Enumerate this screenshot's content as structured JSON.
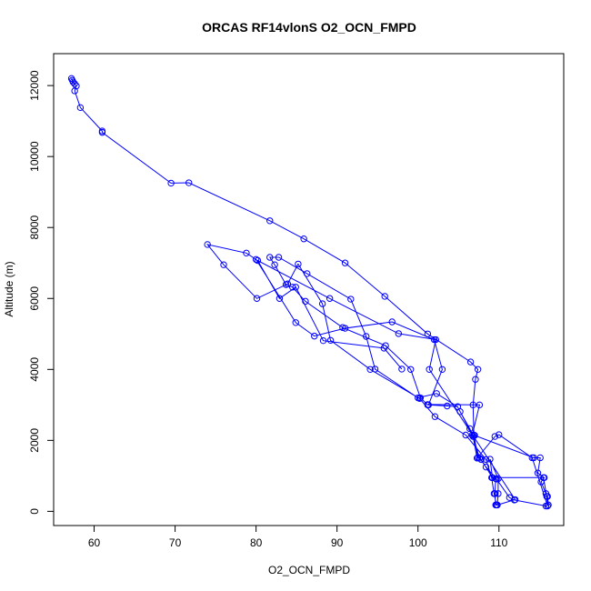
{
  "chart_data": {
    "type": "line",
    "title": "ORCAS RF14vlonS O2_OCN_FMPD",
    "xlabel": "O2_OCN_FMPD",
    "ylabel": "Altitude (m)",
    "xlim": [
      55,
      118
    ],
    "ylim": [
      -400,
      12900
    ],
    "x_ticks": [
      60,
      70,
      80,
      90,
      100,
      110
    ],
    "y_ticks": [
      0,
      2000,
      4000,
      6000,
      8000,
      10000,
      12000
    ],
    "grid": false,
    "series_color": "#0000ff",
    "series": [
      {
        "points": [
          [
            57.3,
            12150
          ],
          [
            57.2,
            12200
          ],
          [
            57.4,
            12100
          ],
          [
            57.6,
            12050
          ],
          [
            57.8,
            11990
          ],
          [
            57.6,
            11850
          ],
          [
            58.3,
            11380
          ],
          [
            61.0,
            10720
          ],
          [
            61.0,
            10680
          ],
          [
            69.5,
            9250
          ],
          [
            71.7,
            9260
          ],
          [
            81.7,
            8190
          ],
          [
            85.9,
            7680
          ],
          [
            91.0,
            7000
          ],
          [
            95.9,
            6060
          ],
          [
            101.2,
            5000
          ],
          [
            106.5,
            4210
          ],
          [
            107.4,
            4000
          ],
          [
            107.1,
            3720
          ],
          [
            106.8,
            3000
          ],
          [
            106.9,
            2150
          ],
          [
            107.4,
            1520
          ],
          [
            107.8,
            1460
          ],
          [
            109.2,
            950
          ],
          [
            109.6,
            920
          ],
          [
            109.5,
            500
          ],
          [
            109.6,
            180
          ],
          [
            109.7,
            180
          ],
          [
            109.4,
            500
          ],
          [
            109.1,
            950
          ],
          [
            108.4,
            1460
          ],
          [
            105.9,
            2150
          ],
          [
            102.1,
            2670
          ],
          [
            100.2,
            3180
          ],
          [
            94.1,
            4000
          ],
          [
            89.2,
            4820
          ],
          [
            88.2,
            5850
          ],
          [
            85.2,
            6970
          ],
          [
            83.9,
            6410
          ],
          [
            80.1,
            6000
          ],
          [
            76.0,
            6950
          ],
          [
            74.0,
            7520
          ],
          [
            78.8,
            7280
          ],
          [
            80.0,
            7100
          ],
          [
            84.9,
            5320
          ],
          [
            87.2,
            4940
          ],
          [
            91.0,
            5160
          ],
          [
            96.8,
            5340
          ],
          [
            102.0,
            4840
          ],
          [
            103.0,
            4000
          ],
          [
            101.3,
            3000
          ],
          [
            101.2,
            3010
          ],
          [
            107.6,
            3000
          ],
          [
            106.7,
            2150
          ],
          [
            107.0,
            2140
          ],
          [
            114.3,
            1510
          ],
          [
            115.1,
            1510
          ],
          [
            114.8,
            1080
          ],
          [
            115.6,
            950
          ],
          [
            115.2,
            830
          ],
          [
            115.8,
            500
          ],
          [
            116.0,
            420
          ],
          [
            116.1,
            180
          ],
          [
            115.8,
            150
          ],
          [
            111.9,
            320
          ],
          [
            111.3,
            390
          ],
          [
            109.7,
            910
          ],
          [
            108.4,
            1250
          ],
          [
            107.6,
            1500
          ],
          [
            106.8,
            2120
          ],
          [
            106.4,
            2330
          ],
          [
            105.2,
            2810
          ],
          [
            104.9,
            2950
          ],
          [
            102.3,
            3320
          ],
          [
            100.0,
            3200
          ],
          [
            94.7,
            4010
          ],
          [
            93.6,
            4930
          ],
          [
            91.7,
            5980
          ],
          [
            86.3,
            6700
          ],
          [
            82.8,
            7160
          ],
          [
            81.7,
            7160
          ],
          [
            82.3,
            6950
          ],
          [
            83.7,
            6390
          ],
          [
            84.5,
            6320
          ],
          [
            86.1,
            5920
          ],
          [
            90.7,
            5180
          ],
          [
            96.0,
            4670
          ],
          [
            99.1,
            4000
          ],
          [
            100.3,
            3200
          ],
          [
            101.2,
            3000
          ],
          [
            103.6,
            2970
          ],
          [
            104.9,
            2950
          ],
          [
            106.8,
            2110
          ],
          [
            107.3,
            1500
          ],
          [
            109.5,
            2110
          ],
          [
            110.0,
            2160
          ],
          [
            114.1,
            1510
          ],
          [
            116.0,
            150
          ],
          [
            115.9,
            420
          ],
          [
            115.5,
            950
          ],
          [
            109.2,
            950
          ],
          [
            108.9,
            1470
          ],
          [
            109.9,
            920
          ],
          [
            109.9,
            500
          ],
          [
            109.8,
            180
          ],
          [
            112.0,
            330
          ],
          [
            101.4,
            4000
          ],
          [
            102.2,
            4840
          ],
          [
            97.6,
            5010
          ],
          [
            89.1,
            6000
          ],
          [
            80.2,
            7070
          ],
          [
            82.9,
            6000
          ],
          [
            84.9,
            6320
          ],
          [
            88.3,
            4810
          ],
          [
            95.8,
            4600
          ],
          [
            98.0,
            4010
          ]
        ]
      }
    ]
  }
}
